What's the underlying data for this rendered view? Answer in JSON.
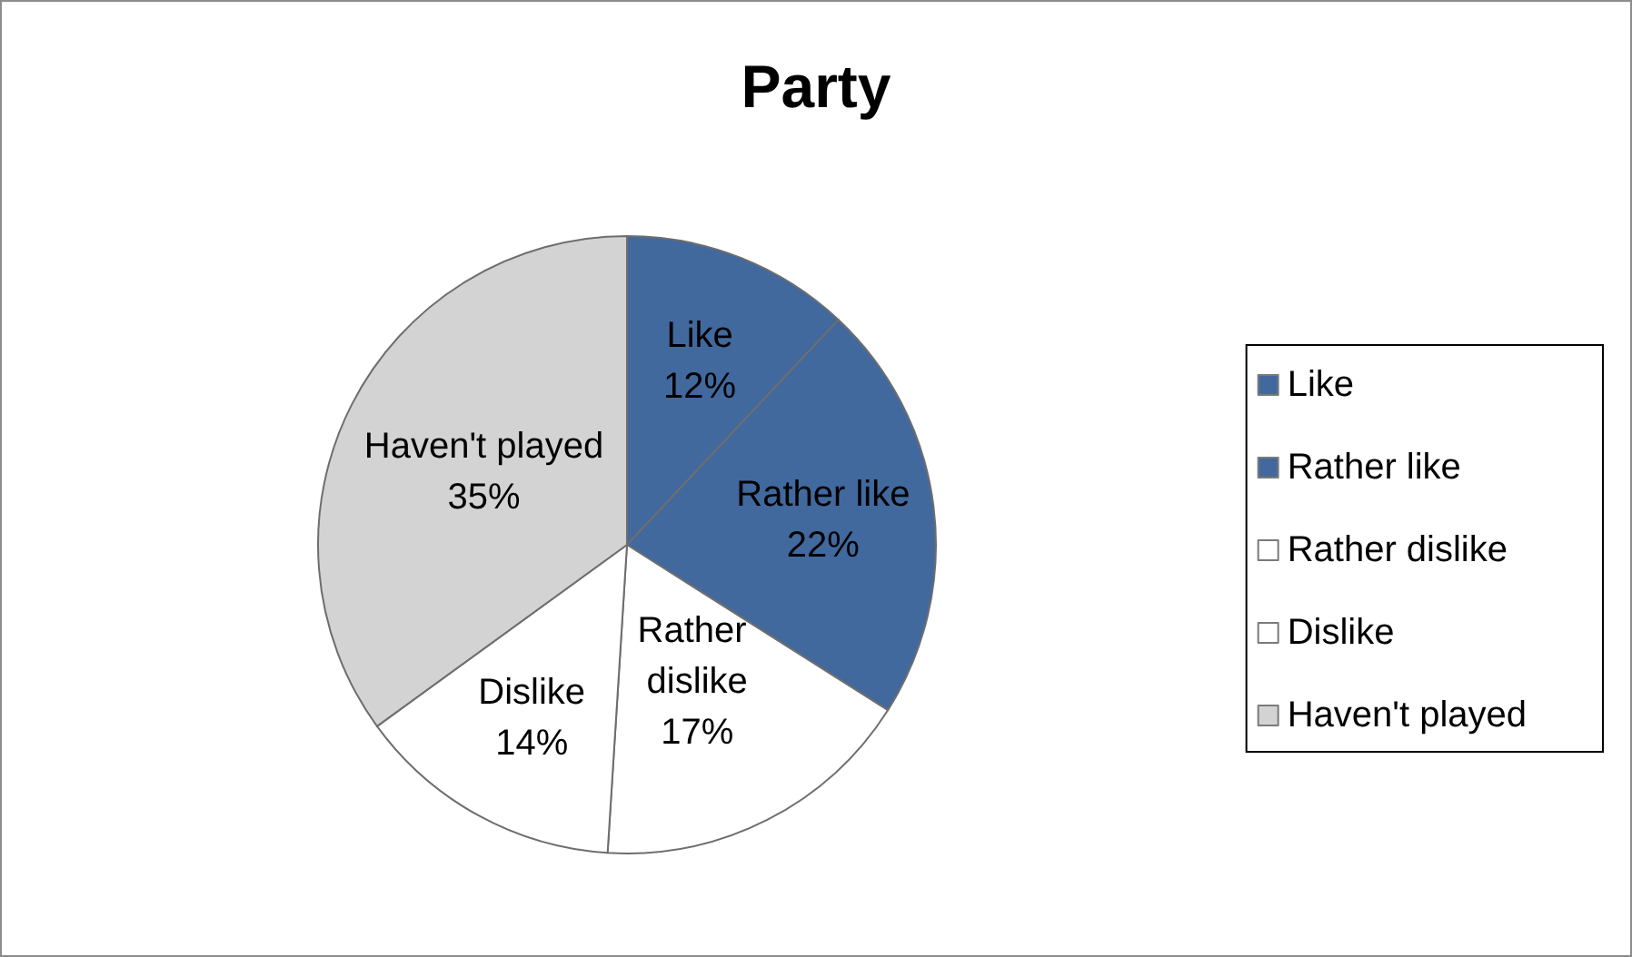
{
  "chart_data": {
    "type": "pie",
    "title": "Party",
    "categories": [
      "Like",
      "Rather like",
      "Rather dislike",
      "Dislike",
      "Haven't played"
    ],
    "values": [
      12,
      22,
      17,
      14,
      35
    ],
    "value_labels": [
      "12%",
      "22%",
      "17%",
      "14%",
      "35%"
    ],
    "colors": [
      "#41699e",
      "#41699e",
      "#ffffff",
      "#ffffff",
      "#d3d3d3"
    ],
    "legend": "right"
  }
}
